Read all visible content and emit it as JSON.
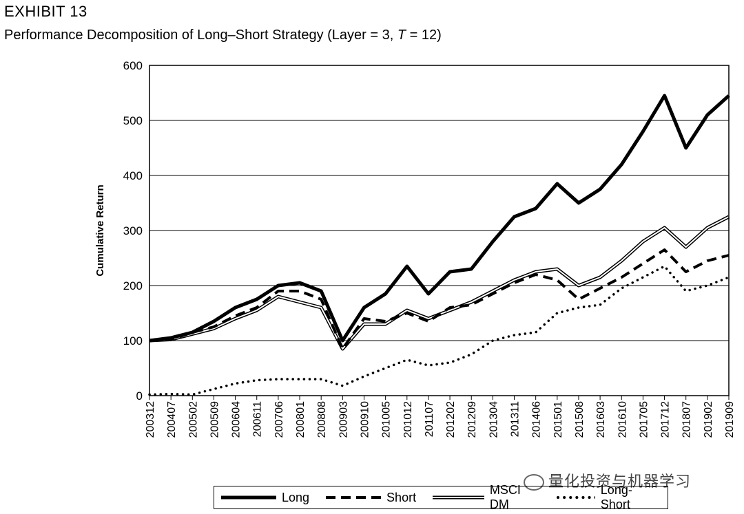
{
  "header": {
    "exhibit": "EXHIBIT 13",
    "subtitle_prefix": "Performance Decomposition of Long–Short Strategy (Layer = 3, ",
    "subtitle_t": "T",
    "subtitle_suffix": " = 12)"
  },
  "watermark": "量化投资与机器学习",
  "legend": {
    "long": "Long",
    "short": "Short",
    "msci": "MSCI DM",
    "longshort": "Long-Short"
  },
  "chart_data": {
    "type": "line",
    "ylabel": "Cumulative Return",
    "ylim": [
      0,
      600
    ],
    "yticks": [
      0,
      100,
      200,
      300,
      400,
      500,
      600
    ],
    "grid": "horizontal",
    "legend_position": "bottom",
    "x": [
      "200312",
      "200407",
      "200502",
      "200509",
      "200604",
      "200611",
      "200706",
      "200801",
      "200808",
      "200903",
      "200910",
      "201005",
      "201012",
      "201107",
      "201202",
      "201209",
      "201304",
      "201311",
      "201406",
      "201501",
      "201508",
      "201603",
      "201610",
      "201705",
      "201712",
      "201807",
      "201902",
      "201909"
    ],
    "series": [
      {
        "name": "Long",
        "style": "thick-solid",
        "values": [
          100,
          105,
          115,
          135,
          160,
          175,
          200,
          205,
          190,
          100,
          160,
          185,
          235,
          185,
          225,
          230,
          280,
          325,
          340,
          385,
          350,
          375,
          420,
          480,
          545,
          450,
          510,
          545
        ]
      },
      {
        "name": "Short",
        "style": "dashed",
        "values": [
          100,
          102,
          115,
          125,
          145,
          160,
          190,
          190,
          175,
          85,
          140,
          135,
          150,
          135,
          160,
          165,
          185,
          205,
          220,
          210,
          175,
          195,
          215,
          240,
          265,
          225,
          245,
          255
        ]
      },
      {
        "name": "MSCI DM",
        "style": "double-line",
        "values": [
          100,
          102,
          112,
          122,
          140,
          155,
          180,
          170,
          160,
          85,
          130,
          130,
          155,
          140,
          155,
          170,
          190,
          210,
          225,
          230,
          200,
          215,
          245,
          280,
          305,
          270,
          305,
          325
        ]
      },
      {
        "name": "Long-Short",
        "style": "dotted",
        "values": [
          2,
          3,
          2,
          12,
          22,
          28,
          30,
          30,
          30,
          18,
          35,
          50,
          65,
          55,
          60,
          75,
          100,
          110,
          115,
          150,
          160,
          165,
          195,
          215,
          235,
          190,
          200,
          215
        ]
      }
    ]
  }
}
